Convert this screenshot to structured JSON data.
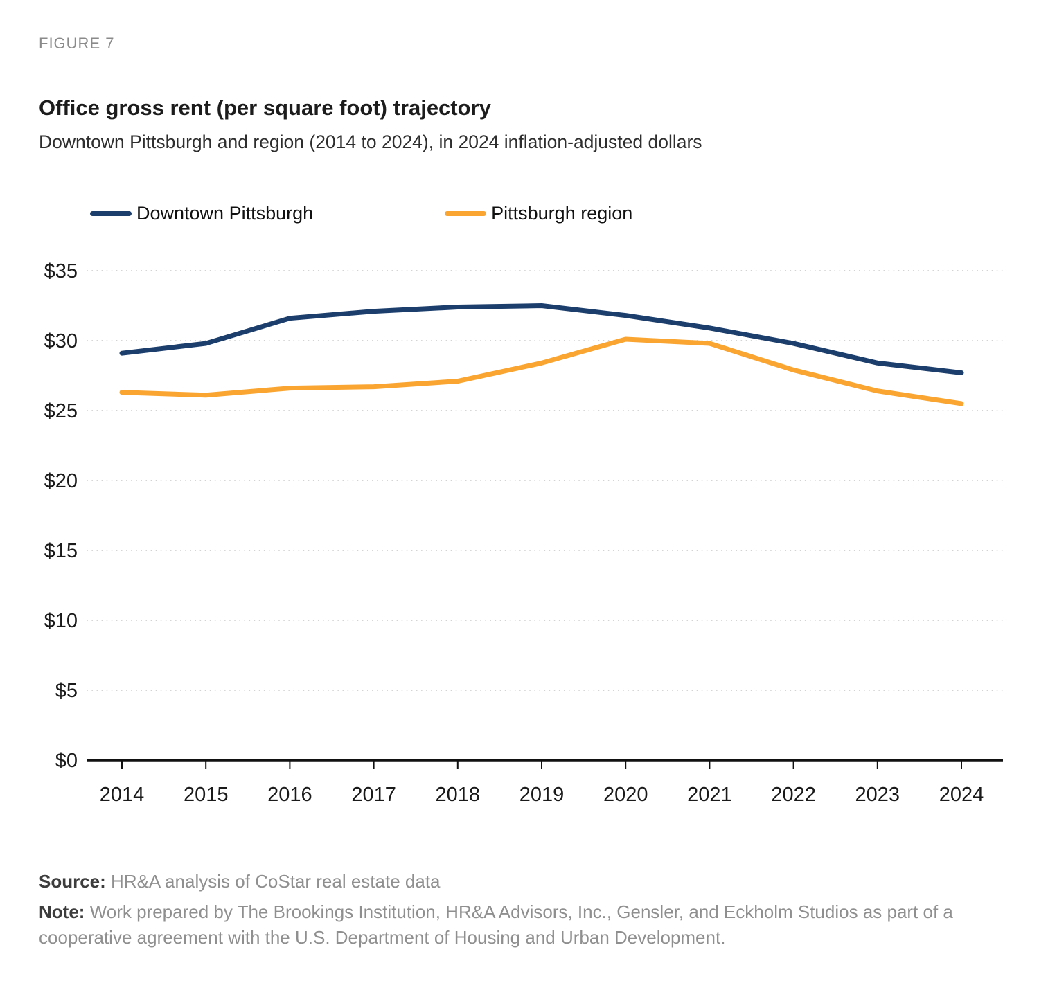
{
  "figure_label": "FIGURE 7",
  "title": "Office gross rent (per square foot) trajectory",
  "subtitle": "Downtown Pittsburgh and region (2014 to 2024), in 2024 inflation-adjusted dollars",
  "footer": {
    "source_prefix": "Source:",
    "source_text": " HR&A analysis of CoStar real estate data",
    "note_prefix": "Note:",
    "note_text": " Work prepared by The Brookings Institution, HR&A Advisors, Inc., Gensler, and Eckholm Studios as part of a cooperative agreement with the U.S. Department of Housing and Urban Development."
  },
  "chart_data": {
    "type": "line",
    "title": "Office gross rent (per square foot) trajectory",
    "subtitle": "Downtown Pittsburgh and region (2014 to 2024), in 2024 inflation-adjusted dollars",
    "categories": [
      "2014",
      "2015",
      "2016",
      "2017",
      "2018",
      "2019",
      "2020",
      "2021",
      "2022",
      "2023",
      "2024"
    ],
    "series": [
      {
        "name": "Downtown Pittsburgh",
        "color": "#1B3E6D",
        "values": [
          29.1,
          29.8,
          31.6,
          32.1,
          32.4,
          32.5,
          31.8,
          30.9,
          29.8,
          28.4,
          27.7
        ]
      },
      {
        "name": "Pittsburgh region",
        "color": "#FAA531",
        "values": [
          26.3,
          26.1,
          26.6,
          26.7,
          27.1,
          28.4,
          30.1,
          29.8,
          27.9,
          26.4,
          25.5
        ]
      }
    ],
    "xlabel": "",
    "ylabel": "",
    "ylim": [
      0,
      35
    ],
    "ytick_step": 5,
    "ytick_format": "$",
    "grid": "dotted-horizontal",
    "legend_position": "top"
  }
}
